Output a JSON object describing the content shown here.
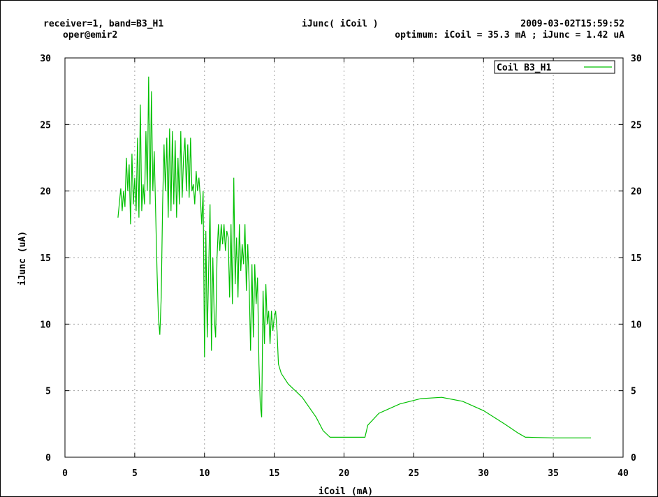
{
  "header": {
    "top_left": "receiver=1, band=B3_H1",
    "user": "oper@emir2",
    "title": "iJunc( iCoil )",
    "timestamp": "2009-03-02T15:59:52",
    "optimum": "optimum: iCoil = 35.3 mA ; iJunc = 1.42 uA"
  },
  "colors": {
    "series": "#00c000",
    "grid": "#a0a0a0",
    "axis": "#000000"
  },
  "chart_data": {
    "type": "line",
    "title": "iJunc( iCoil )",
    "xlabel": "iCoil (mA)",
    "ylabel": "iJunc (uA)",
    "xlim": [
      0,
      40
    ],
    "ylim": [
      0,
      30
    ],
    "xticks": [
      0,
      5,
      10,
      15,
      20,
      25,
      30,
      35,
      40
    ],
    "yticks": [
      0,
      5,
      10,
      15,
      20,
      25,
      30
    ],
    "grid": true,
    "mirror_y_ticks_right": true,
    "legend_position": "top-right",
    "series": [
      {
        "name": "Coil B3_H1",
        "color": "#00c000",
        "x": [
          3.8,
          4.0,
          4.1,
          4.2,
          4.3,
          4.4,
          4.5,
          4.6,
          4.7,
          4.8,
          4.9,
          5.0,
          5.1,
          5.2,
          5.3,
          5.4,
          5.5,
          5.6,
          5.7,
          5.8,
          5.9,
          6.0,
          6.1,
          6.2,
          6.3,
          6.4,
          6.5,
          6.6,
          6.7,
          6.8,
          6.9,
          7.0,
          7.1,
          7.2,
          7.3,
          7.4,
          7.5,
          7.6,
          7.7,
          7.8,
          7.9,
          8.0,
          8.1,
          8.2,
          8.3,
          8.4,
          8.5,
          8.6,
          8.7,
          8.8,
          8.9,
          9.0,
          9.1,
          9.2,
          9.3,
          9.4,
          9.5,
          9.6,
          9.7,
          9.8,
          9.9,
          10.0,
          10.1,
          10.2,
          10.3,
          10.4,
          10.5,
          10.6,
          10.7,
          10.8,
          10.9,
          11.0,
          11.1,
          11.2,
          11.3,
          11.4,
          11.5,
          11.6,
          11.7,
          11.8,
          11.9,
          12.0,
          12.1,
          12.2,
          12.3,
          12.4,
          12.5,
          12.6,
          12.7,
          12.8,
          12.9,
          13.0,
          13.1,
          13.2,
          13.3,
          13.4,
          13.5,
          13.6,
          13.7,
          13.8,
          13.9,
          14.0,
          14.1,
          14.2,
          14.3,
          14.4,
          14.5,
          14.6,
          14.7,
          14.8,
          14.9,
          15.0,
          15.1,
          15.2,
          15.3,
          15.5,
          16.0,
          17.0,
          18.0,
          18.5,
          19.0,
          19.3,
          20.0,
          21.0,
          21.5,
          21.7,
          22.5,
          24.0,
          25.5,
          27.0,
          28.5,
          30.0,
          31.5,
          32.5,
          33.0,
          33.2,
          35.0,
          36.0,
          37.7
        ],
        "y": [
          18.0,
          20.2,
          18.5,
          20.0,
          18.8,
          22.5,
          20.0,
          22.0,
          17.5,
          22.8,
          19.0,
          21.0,
          18.5,
          24.0,
          18.0,
          26.5,
          18.5,
          20.5,
          19.0,
          24.5,
          20.0,
          28.6,
          19.0,
          27.5,
          20.0,
          23.0,
          18.5,
          14.0,
          10.5,
          9.2,
          12.0,
          19.0,
          23.5,
          20.0,
          24.0,
          18.0,
          24.7,
          18.5,
          24.5,
          19.0,
          23.8,
          18.0,
          22.5,
          19.0,
          24.5,
          19.5,
          22.5,
          24.0,
          20.0,
          23.5,
          19.5,
          24.0,
          20.0,
          20.5,
          19.0,
          21.5,
          20.0,
          21.0,
          19.5,
          17.5,
          20.0,
          7.5,
          17.0,
          9.0,
          14.0,
          19.0,
          8.0,
          15.0,
          10.5,
          9.0,
          15.0,
          17.5,
          15.5,
          17.5,
          16.0,
          17.5,
          15.5,
          17.0,
          16.5,
          12.0,
          17.5,
          11.5,
          21.0,
          13.0,
          16.5,
          12.0,
          17.5,
          14.0,
          16.0,
          14.5,
          17.5,
          12.5,
          16.0,
          13.0,
          8.0,
          14.5,
          9.0,
          14.5,
          11.5,
          13.5,
          7.0,
          4.0,
          3.0,
          12.5,
          8.5,
          13.0,
          10.0,
          11.0,
          8.5,
          11.0,
          9.5,
          10.5,
          11.0,
          9.5,
          7.0,
          6.3,
          5.5,
          4.5,
          3.0,
          2.0,
          1.5,
          1.5,
          1.5,
          1.5,
          1.5,
          2.4,
          3.3,
          4.0,
          4.4,
          4.5,
          4.2,
          3.5,
          2.5,
          1.8,
          1.5,
          1.5,
          1.45,
          1.45,
          1.45
        ]
      }
    ]
  }
}
